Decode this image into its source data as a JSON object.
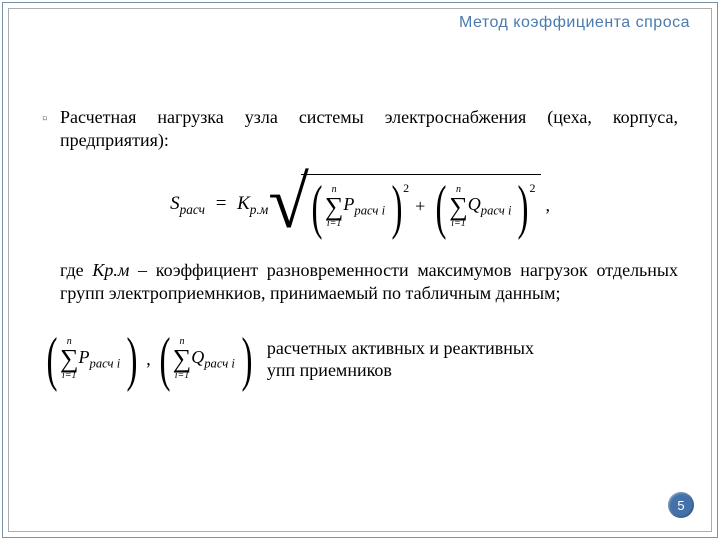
{
  "title": "Метод коэффициента спроса",
  "bullet": {
    "marker": "▫",
    "text": "Расчетная нагрузка узла системы электроснабжения (цеха, корпуса, предприятия):"
  },
  "formula1": {
    "lhs": {
      "S": "S",
      "sub": "расч"
    },
    "eq": "=",
    "K": {
      "sym": "К",
      "sub": "р.м"
    },
    "sqrt": "√",
    "parenL": "(",
    "parenR": ")",
    "sum": {
      "top": "n",
      "sym": "∑",
      "bot": "i=1"
    },
    "P": {
      "sym": "P",
      "sub": "расч i"
    },
    "Q": {
      "sym": "Q",
      "sub": "расч i"
    },
    "sq": "2",
    "plus": "+",
    "comma": ","
  },
  "para": {
    "pre": "где ",
    "coef": "Кр.м",
    "rest": " – коэффициент разновременности максимумов нагрузок отдельных групп электроприемнкиов, принимаемый по табличным данным;"
  },
  "pair": {
    "parenL": "(",
    "parenR": ")",
    "sum": {
      "top": "n",
      "sym": "∑",
      "bot": "i=1"
    },
    "P": {
      "sym": "P",
      "sub": "расч i"
    },
    "Q": {
      "sym": "Q",
      "sub": "расч i"
    },
    "comma": ",",
    "text_line1": " расчетных   активных   и реактивных",
    "text_line2": "упп приемников"
  },
  "page": "5",
  "colors": {
    "title": "#4a7ab0",
    "badge_bg": "#4472a8",
    "outer_border": "#7a92a8",
    "inner_border": "#adadad"
  }
}
